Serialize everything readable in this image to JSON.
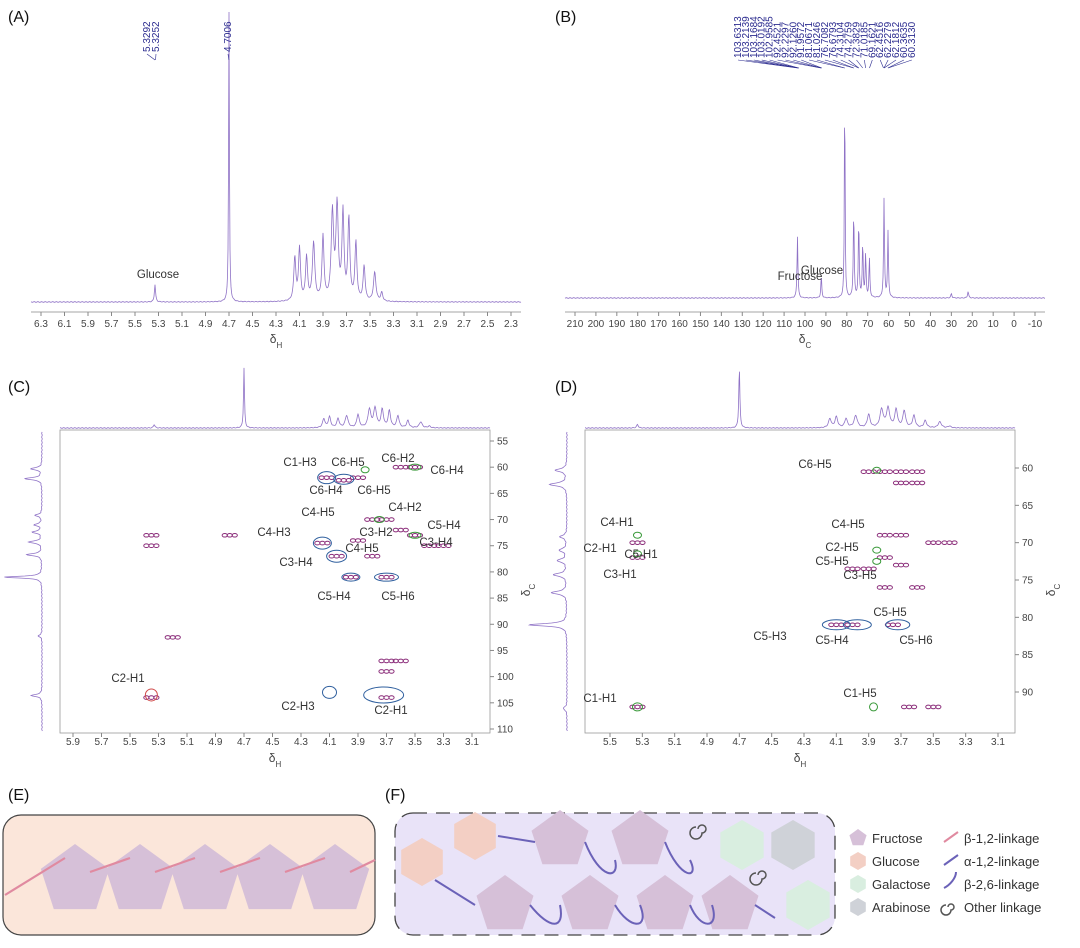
{
  "panels": [
    {
      "label": "(A)",
      "x_label": {
        "symbol": "δ",
        "sub": "H"
      },
      "x_ticks": [
        6.3,
        6.1,
        5.9,
        5.7,
        5.5,
        5.3,
        5.1,
        4.9,
        4.7,
        4.5,
        4.3,
        4.1,
        3.9,
        3.7,
        3.5,
        3.3,
        3.1,
        2.9,
        2.7,
        2.5,
        2.3
      ],
      "peak_labels": [
        "5.3292",
        "5.3252",
        "4.7006"
      ],
      "annotations": [
        {
          "text": "Glucose",
          "color": "#3a9a3a"
        }
      ]
    },
    {
      "label": "(B)",
      "x_label": {
        "symbol": "δ",
        "sub": "C"
      },
      "x_ticks": [
        210,
        200,
        190,
        180,
        170,
        160,
        150,
        140,
        130,
        120,
        110,
        100,
        90,
        80,
        70,
        60,
        50,
        40,
        30,
        20,
        10,
        0,
        -10
      ],
      "peak_labels": [
        "103.6313",
        "103.2139",
        "103.1684",
        "103.0192",
        "102.9585",
        "92.4521",
        "92.2297",
        "92.1260",
        "91.9572",
        "81.0671",
        "81.0246",
        "76.7082",
        "76.6793",
        "74.3104",
        "74.2759",
        "72.3829",
        "71.0185",
        "69.1621",
        "62.4516",
        "62.2279",
        "62.1812",
        "60.3635",
        "60.3130"
      ],
      "annotations": [
        {
          "text": "Fructose",
          "color": "#2f5f9e"
        },
        {
          "text": "Glucose",
          "color": "#3a9a3a"
        }
      ]
    },
    {
      "label": "(C)",
      "x_label": {
        "symbol": "δ",
        "sub": "H"
      },
      "y_label": {
        "symbol": "δ",
        "sub": "C"
      },
      "x_ticks": [
        5.9,
        5.7,
        5.5,
        5.3,
        5.1,
        4.9,
        4.7,
        4.5,
        4.3,
        4.1,
        3.9,
        3.7,
        3.5,
        3.3,
        3.1
      ],
      "y_ticks": [
        55,
        60,
        65,
        70,
        75,
        80,
        85,
        90,
        95,
        100,
        105,
        110
      ],
      "annotations": [
        {
          "text": "C1-H3",
          "color": "#2f5f9e"
        },
        {
          "text": "C6-H4",
          "color": "#2f5f9e"
        },
        {
          "text": "C6-H5",
          "color": "#2f5f9e"
        },
        {
          "text": "C4-H3",
          "color": "#2f5f9e"
        },
        {
          "text": "C3-H4",
          "color": "#2f5f9e"
        },
        {
          "text": "C4-H5",
          "color": "#2f5f9e"
        },
        {
          "text": "C5-H4",
          "color": "#2f5f9e"
        },
        {
          "text": "C5-H6",
          "color": "#2f5f9e"
        },
        {
          "text": "C2-H3",
          "color": "#2f5f9e"
        },
        {
          "text": "C2-H1",
          "color": "#2f5f9e"
        },
        {
          "text": "C6-H5",
          "color": "#3a9a3a"
        },
        {
          "text": "C6-H2",
          "color": "#3a9a3a"
        },
        {
          "text": "C6-H4",
          "color": "#3a9a3a"
        },
        {
          "text": "C4-H5",
          "color": "#3a9a3a"
        },
        {
          "text": "C4-H2",
          "color": "#3a9a3a"
        },
        {
          "text": "C5-H4",
          "color": "#3a9a3a"
        },
        {
          "text": "C3-H2",
          "color": "#3a9a3a"
        },
        {
          "text": "C3-H4",
          "color": "#3a9a3a"
        },
        {
          "text": "C2-H1",
          "color": "#3a9a3a"
        }
      ]
    },
    {
      "label": "(D)",
      "x_label": {
        "symbol": "δ",
        "sub": "H"
      },
      "y_label": {
        "symbol": "δ",
        "sub": "C"
      },
      "x_ticks": [
        5.5,
        5.3,
        5.1,
        4.9,
        4.7,
        4.5,
        4.3,
        4.1,
        3.9,
        3.7,
        3.5,
        3.3,
        3.1
      ],
      "y_ticks": [
        60,
        65,
        70,
        75,
        80,
        85,
        90
      ],
      "annotations": [
        {
          "text": "C6-H5",
          "color": "#3a9a3a"
        },
        {
          "text": "C4-H1",
          "color": "#3a9a3a"
        },
        {
          "text": "C2-H1",
          "color": "#3a9a3a"
        },
        {
          "text": "C5-H1",
          "color": "#3a9a3a"
        },
        {
          "text": "C3-H1",
          "color": "#3a9a3a"
        },
        {
          "text": "C4-H5",
          "color": "#3a9a3a"
        },
        {
          "text": "C2-H5",
          "color": "#3a9a3a"
        },
        {
          "text": "C5-H5",
          "color": "#3a9a3a"
        },
        {
          "text": "C3-H5",
          "color": "#3a9a3a"
        },
        {
          "text": "C1-H1",
          "color": "#3a9a3a"
        },
        {
          "text": "C1-H5",
          "color": "#3a9a3a"
        },
        {
          "text": "C5-H5",
          "color": "#2f5f9e"
        },
        {
          "text": "C5-H3",
          "color": "#2f5f9e"
        },
        {
          "text": "C5-H4",
          "color": "#2f5f9e"
        },
        {
          "text": "C5-H6",
          "color": "#2f5f9e"
        }
      ]
    },
    {
      "label": "(E)"
    },
    {
      "label": "(F)"
    }
  ],
  "legend": {
    "sugars": [
      "Fructose",
      "Glucose",
      "Galactose",
      "Arabinose"
    ],
    "linkages": [
      "β-1,2-linkage",
      "α-1,2-linkage",
      "β-2,6-linkage",
      "Other linkage"
    ]
  }
}
